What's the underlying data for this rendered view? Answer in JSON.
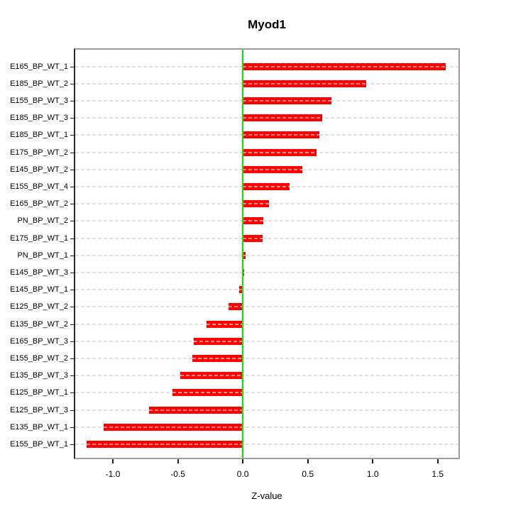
{
  "chart_data": {
    "type": "bar",
    "orientation": "horizontal",
    "title": "Myod1",
    "xlabel": "Z-value",
    "ylabel": "",
    "categories": [
      "E165_BP_WT_1",
      "E185_BP_WT_2",
      "E155_BP_WT_3",
      "E185_BP_WT_3",
      "E185_BP_WT_1",
      "E175_BP_WT_2",
      "E145_BP_WT_2",
      "E155_BP_WT_4",
      "E165_BP_WT_2",
      "PN_BP_WT_2",
      "E175_BP_WT_1",
      "PN_BP_WT_1",
      "E145_BP_WT_3",
      "E145_BP_WT_1",
      "E125_BP_WT_2",
      "E135_BP_WT_2",
      "E165_BP_WT_3",
      "E155_BP_WT_2",
      "E135_BP_WT_3",
      "E125_BP_WT_1",
      "E125_BP_WT_3",
      "E135_BP_WT_1",
      "E155_BP_WT_1"
    ],
    "values": [
      1.56,
      0.95,
      0.68,
      0.61,
      0.59,
      0.57,
      0.46,
      0.36,
      0.2,
      0.16,
      0.15,
      0.02,
      0.01,
      -0.03,
      -0.11,
      -0.28,
      -0.38,
      -0.39,
      -0.48,
      -0.54,
      -0.72,
      -1.07,
      -1.2
    ],
    "x_ticks": [
      {
        "value": -1.0,
        "label": "-1.0"
      },
      {
        "value": -0.5,
        "label": "-0.5"
      },
      {
        "value": 0.0,
        "label": "0.0"
      },
      {
        "value": 0.5,
        "label": "0.5"
      },
      {
        "value": 1.0,
        "label": "1.0"
      },
      {
        "value": 1.5,
        "label": "1.5"
      }
    ],
    "xlim": [
      -1.29,
      1.66
    ],
    "grid": "horizontal dashed line per category",
    "reference_line_x": 0.0,
    "legend": null,
    "colors": {
      "bar": "#ff0000",
      "bar_stripe_overlay": "#ff8c8c",
      "grid_line": "#dedede",
      "zero_line": "#00f000",
      "box_border": "#9e9e9e",
      "axis_text": "#000000"
    }
  }
}
